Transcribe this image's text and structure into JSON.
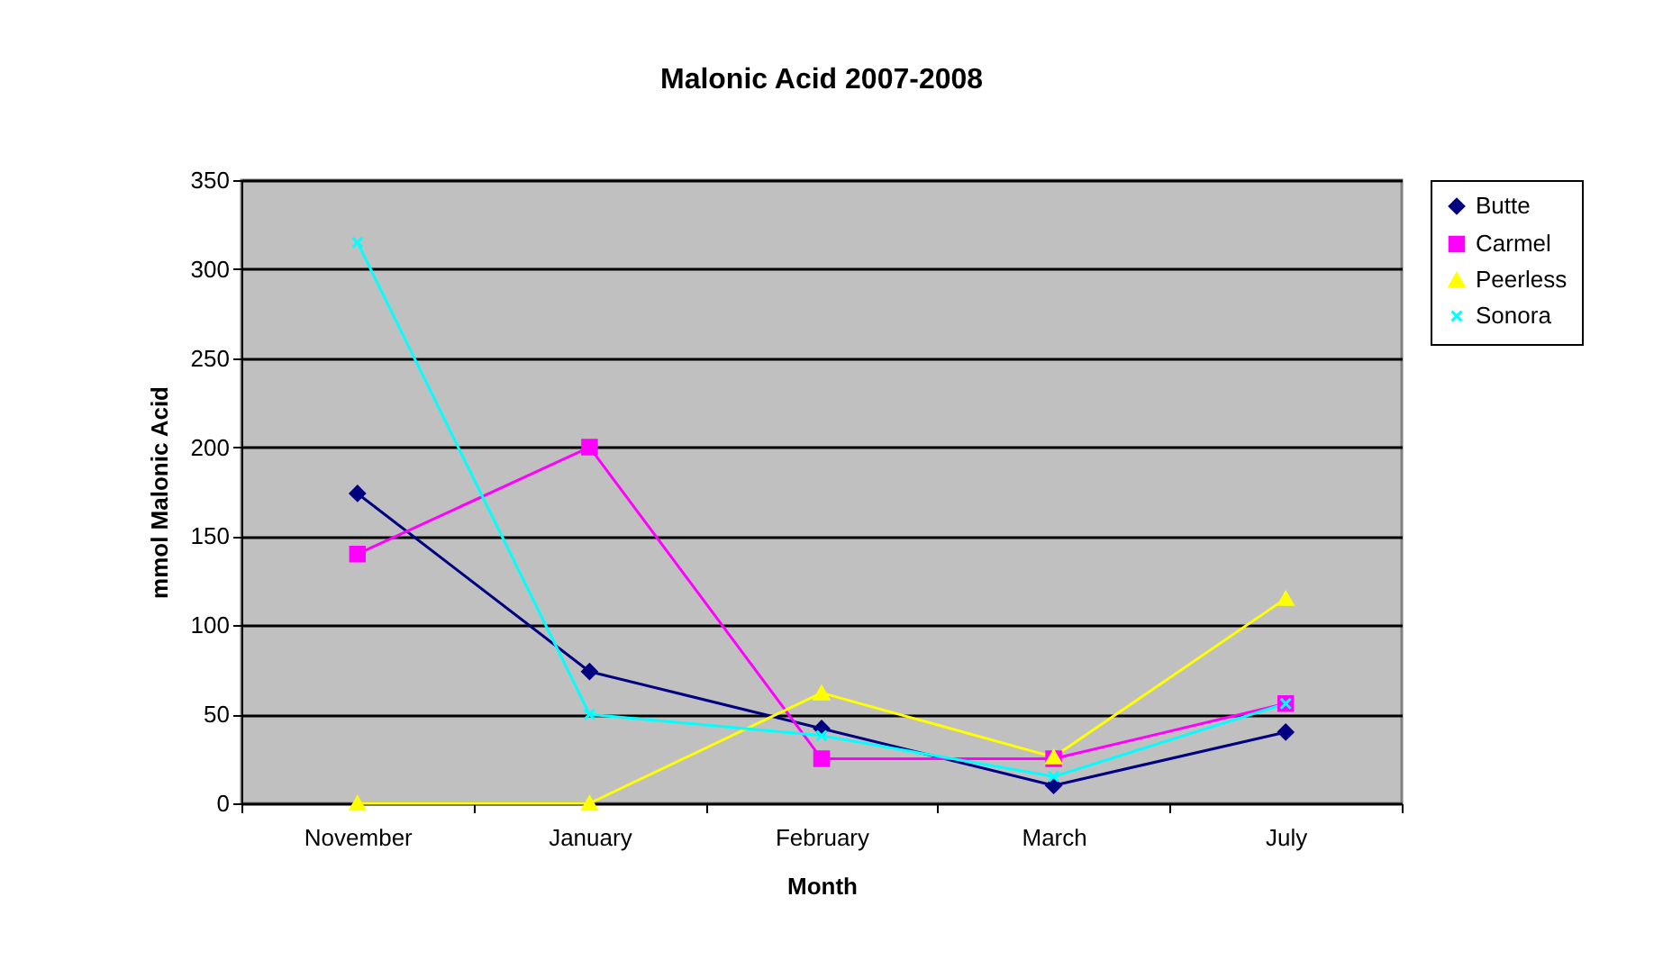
{
  "chart_data": {
    "type": "line",
    "title": "Malonic Acid 2007-2008",
    "xlabel": "Month",
    "ylabel": "mmol Malonic Acid",
    "categories": [
      "November",
      "January",
      "February",
      "March",
      "July"
    ],
    "series": [
      {
        "name": "Butte",
        "color": "#000080",
        "marker": "diamond",
        "values": [
          174,
          74,
          42,
          10,
          40
        ]
      },
      {
        "name": "Carmel",
        "color": "#ff00ff",
        "marker": "square",
        "values": [
          140,
          200,
          25,
          25,
          56
        ]
      },
      {
        "name": "Peerless",
        "color": "#ffff00",
        "marker": "triangle",
        "values": [
          0,
          0,
          62,
          26,
          115
        ]
      },
      {
        "name": "Sonora",
        "color": "#00ffff",
        "marker": "cross",
        "values": [
          315,
          50,
          38,
          15,
          56
        ]
      }
    ],
    "ylim": [
      0,
      350
    ],
    "yticks": [
      0,
      50,
      100,
      150,
      200,
      250,
      300,
      350
    ],
    "grid": "y",
    "legend": "right"
  }
}
